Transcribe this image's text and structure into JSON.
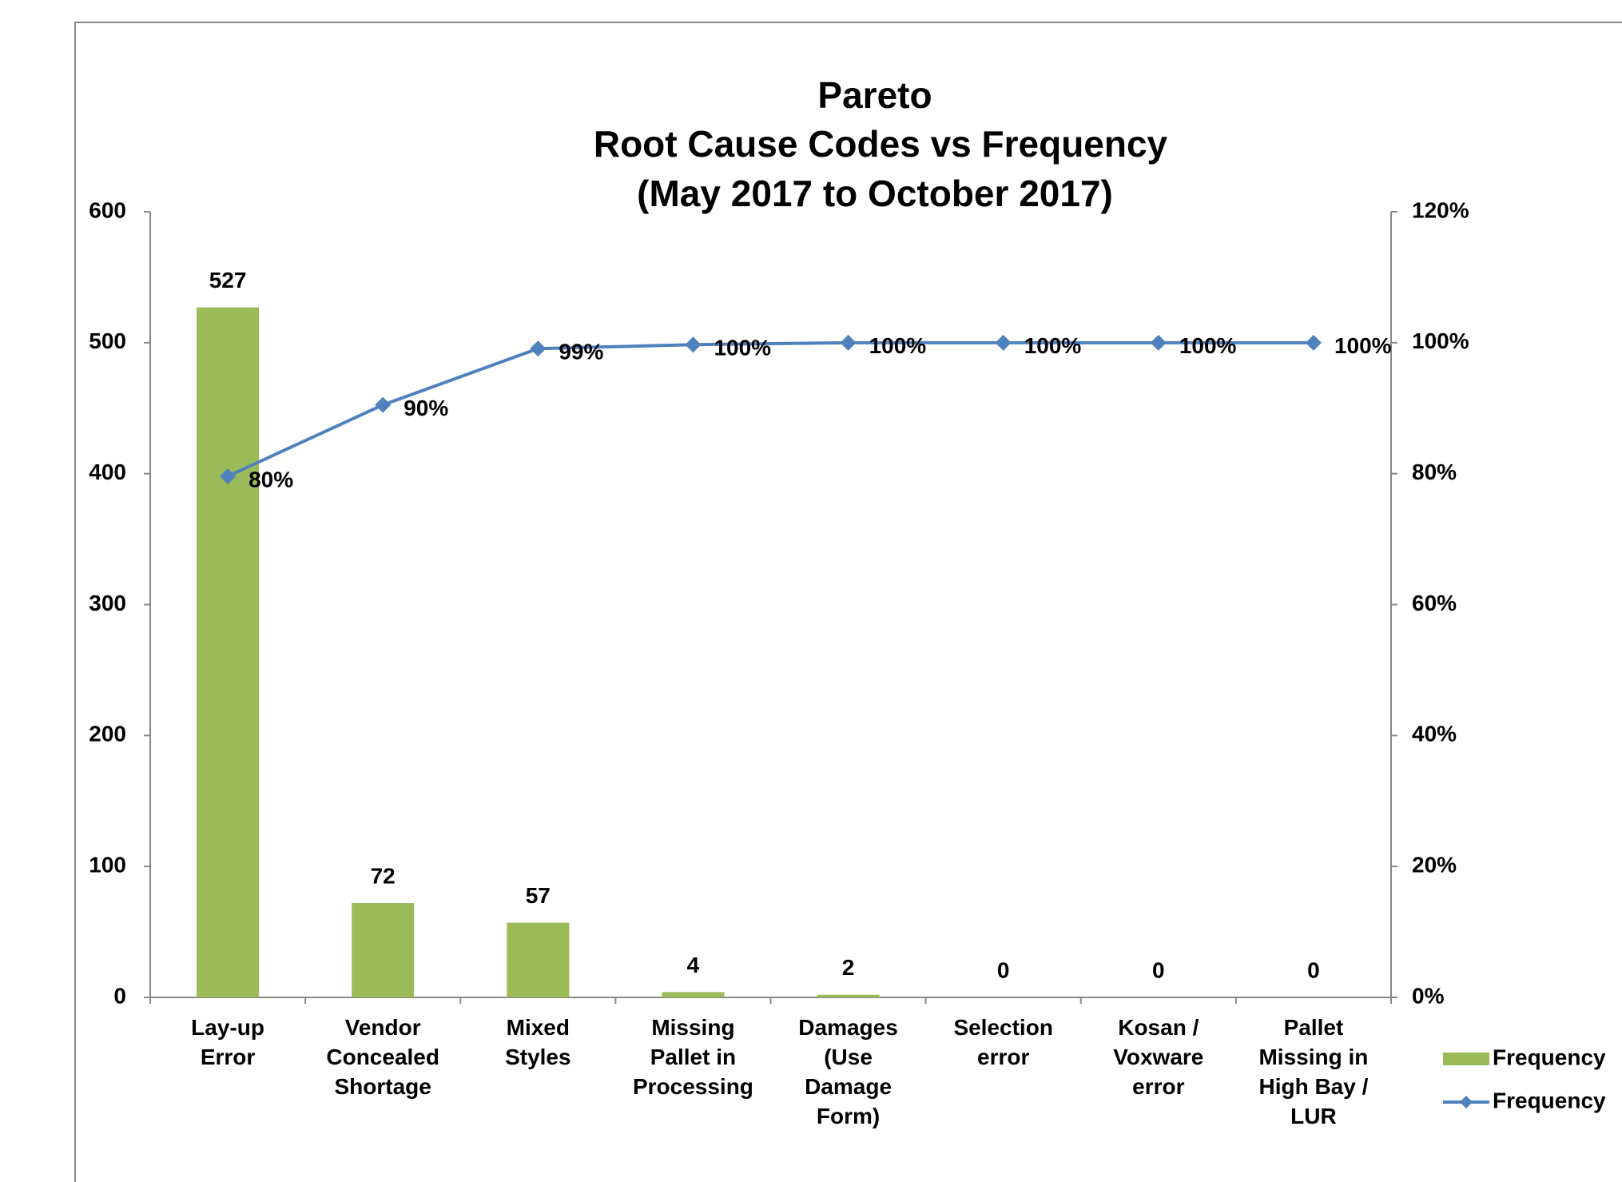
{
  "chart_data": {
    "type": "bar_line_pareto",
    "title": [
      "Pareto",
      "Root Cause Codes vs Frequency",
      "(May 2017 to October 2017)"
    ],
    "categories": [
      "Lay-up\nError",
      "Vendor\nConcealed\nShortage",
      "Mixed\nStyles",
      "Missing\nPallet in\nProcessing",
      "Damages\n(Use\nDamage\nForm)",
      "Selection\nerror",
      "Kosan /\nVoxware\nerror",
      "Pallet\nMissing in\nHigh Bay /\nLUR"
    ],
    "series": [
      {
        "name": "Frequency",
        "type": "bar",
        "color": "#9bbb59",
        "values": [
          527,
          72,
          57,
          4,
          2,
          0,
          0,
          0
        ]
      },
      {
        "name": "Frequency",
        "type": "line",
        "axis": "y2",
        "color": "#4f81bd",
        "values": [
          79.6,
          90.5,
          99.1,
          99.7,
          100,
          100,
          100,
          100
        ],
        "value_labels": [
          "80%",
          "90%",
          "99%",
          "100%",
          "100%",
          "100%",
          "100%",
          "100%"
        ]
      }
    ],
    "ylim": [
      0,
      600
    ],
    "yticks": [
      0,
      100,
      200,
      300,
      400,
      500,
      600
    ],
    "y2lim": [
      0,
      120
    ],
    "y2ticks": [
      {
        "value": 0,
        "label": "0%"
      },
      {
        "value": 20,
        "label": "20%"
      },
      {
        "value": 40,
        "label": "40%"
      },
      {
        "value": 60,
        "label": "60%"
      },
      {
        "value": 80,
        "label": "80%"
      },
      {
        "value": 100,
        "label": "100%"
      },
      {
        "value": 120,
        "label": "120%"
      }
    ],
    "legend": "right"
  }
}
